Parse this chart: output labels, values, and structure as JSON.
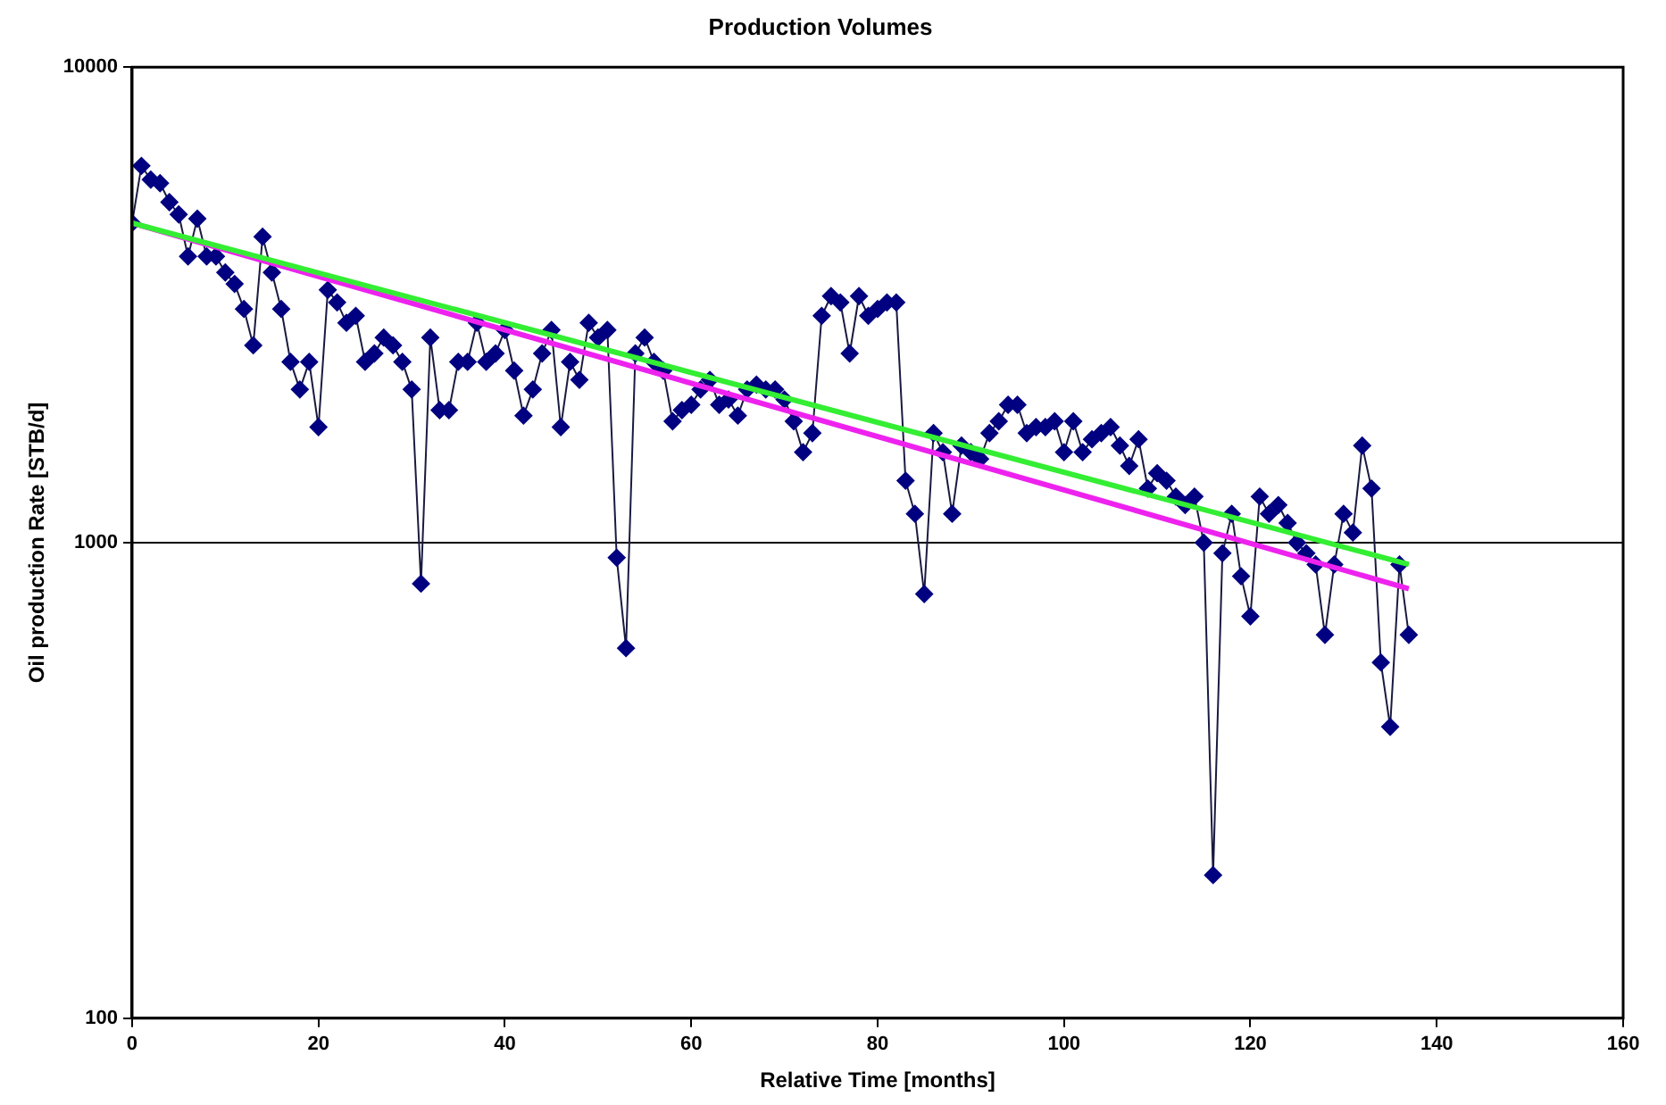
{
  "chart_data": {
    "type": "line",
    "title": "Production Volumes",
    "xlabel": "Relative Time [months]",
    "ylabel": "Oil production Rate [STB/d]",
    "log": "y",
    "grid": "y",
    "legend": false,
    "xlim": [
      0,
      160
    ],
    "xticks": [
      0,
      20,
      40,
      60,
      80,
      100,
      120,
      140,
      160
    ],
    "ylim": [
      100,
      10000
    ],
    "yticks": [
      100,
      1000,
      10000
    ],
    "series": [
      {
        "color": "#000080",
        "marker": "diamond",
        "line_style": "solid",
        "x": [
          0,
          1,
          2,
          3,
          4,
          5,
          6,
          7,
          8,
          9,
          10,
          11,
          12,
          13,
          14,
          15,
          16,
          17,
          18,
          19,
          20,
          21,
          22,
          23,
          24,
          25,
          26,
          27,
          28,
          29,
          30,
          31,
          32,
          33,
          34,
          35,
          36,
          37,
          38,
          39,
          40,
          41,
          42,
          43,
          44,
          45,
          46,
          47,
          48,
          49,
          50,
          51,
          52,
          53,
          54,
          55,
          56,
          57,
          58,
          59,
          60,
          61,
          62,
          63,
          64,
          65,
          66,
          67,
          68,
          69,
          70,
          71,
          72,
          73,
          74,
          75,
          76,
          77,
          78,
          79,
          80,
          81,
          82,
          83,
          84,
          85,
          86,
          87,
          88,
          89,
          90,
          91,
          92,
          93,
          94,
          95,
          96,
          97,
          98,
          99,
          100,
          101,
          102,
          103,
          104,
          105,
          106,
          107,
          108,
          109,
          110,
          111,
          112,
          113,
          114,
          115,
          116,
          117,
          118,
          119,
          120,
          121,
          122,
          123,
          124,
          125,
          126,
          127,
          128,
          129,
          130,
          131,
          132,
          133,
          134,
          135,
          136,
          137
        ],
        "values": [
          4700,
          6200,
          5800,
          5700,
          5200,
          4900,
          4000,
          4800,
          4000,
          4000,
          3700,
          3500,
          3100,
          2600,
          4400,
          3700,
          3100,
          2400,
          2100,
          2400,
          1750,
          3400,
          3200,
          2900,
          3000,
          2400,
          2500,
          2700,
          2600,
          2400,
          2100,
          820,
          2700,
          1900,
          1900,
          2400,
          2400,
          2900,
          2400,
          2500,
          2800,
          2300,
          1850,
          2100,
          2500,
          2800,
          1750,
          2400,
          2200,
          2900,
          2700,
          2800,
          930,
          600,
          2500,
          2700,
          2400,
          2300,
          1800,
          1900,
          1950,
          2100,
          2200,
          1950,
          2000,
          1850,
          2100,
          2150,
          2100,
          2100,
          2000,
          1800,
          1550,
          1700,
          3000,
          3300,
          3200,
          2500,
          3300,
          3000,
          3100,
          3200,
          3200,
          1350,
          1150,
          780,
          1700,
          1550,
          1150,
          1600,
          1550,
          1500,
          1700,
          1800,
          1950,
          1950,
          1700,
          1750,
          1750,
          1800,
          1550,
          1800,
          1550,
          1650,
          1700,
          1750,
          1600,
          1450,
          1650,
          1300,
          1400,
          1350,
          1250,
          1200,
          1250,
          1000,
          200,
          950,
          1150,
          850,
          700,
          1250,
          1150,
          1200,
          1100,
          1000,
          950,
          900,
          640,
          900,
          1150,
          1050,
          1600,
          1300,
          560,
          410,
          900,
          640
        ]
      },
      {
        "color": "#33ee33",
        "marker": "none",
        "line_style": "solid",
        "x": [
          0,
          137
        ],
        "values": [
          4700,
          900
        ]
      },
      {
        "color": "#ee22ee",
        "marker": "none",
        "line_style": "solid",
        "x": [
          0,
          137
        ],
        "values": [
          4700,
          800
        ]
      }
    ]
  }
}
